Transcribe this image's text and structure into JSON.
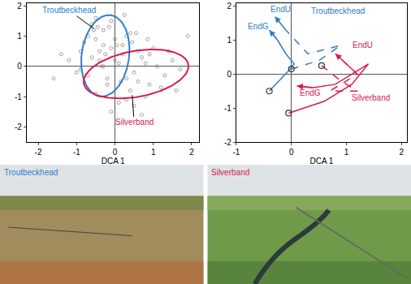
{
  "chart_data": [
    {
      "type": "scatter",
      "xlabel": "DCA 1",
      "xlim": [
        -2.3,
        2.2
      ],
      "xticks": [
        -2,
        -1,
        0,
        1,
        2
      ],
      "ylim": [
        -2.5,
        2.1
      ],
      "yticks": [
        -2,
        -1,
        0,
        1,
        2
      ],
      "grid": false,
      "series": [
        {
          "type": "scatter",
          "color": "#8a8a8a",
          "marker": "open circle",
          "x": [
            -1.2,
            -0.9,
            -0.7,
            -0.5,
            -0.3,
            -0.1,
            0.1,
            0.3,
            0.5,
            0.7,
            0.9,
            1.1,
            1.3,
            1.5,
            1.7,
            -0.8,
            -0.6,
            -0.4,
            -0.2,
            0,
            0.2,
            0.4,
            0.6,
            0.8,
            1.0,
            -1.0,
            -0.5,
            -0.3,
            0.1,
            0.3,
            0.6,
            0.9,
            1.2,
            -0.7,
            -0.4,
            -0.1,
            0.2,
            0.5,
            0.8,
            -0.6,
            -0.2,
            0.0,
            0.4,
            -0.5,
            -0.3,
            -0.1,
            0.3,
            0.7,
            1.4,
            -1.4,
            -0.9,
            0.05,
            -0.15,
            0.25,
            -0.35,
            0.55,
            -0.45,
            1.6,
            1.9,
            -1.6,
            -0.25,
            0.15,
            0.45,
            -0.55,
            0.85
          ],
          "y": [
            0.2,
            0.5,
            -0.3,
            0.9,
            1.2,
            0.6,
            0.1,
            -0.4,
            -0.2,
            0.3,
            -0.6,
            0.0,
            -0.3,
            0.2,
            -0.1,
            0.8,
            1.4,
            0.2,
            -0.6,
            0.9,
            0.4,
            -0.8,
            0.5,
            -1.0,
            0.6,
            -0.2,
            1.6,
            0.0,
            -1.2,
            1.0,
            -0.5,
            0.4,
            -0.7,
            1.0,
            0.5,
            1.5,
            0.7,
            -1.3,
            0.1,
            0.3,
            -0.4,
            0.2,
            1.1,
            -0.9,
            0.7,
            -1.5,
            -1.1,
            -1.6,
            0.5,
            0.4,
            -0.1,
            0.7,
            1.3,
            1.7,
            0.0,
            1.1,
            1.3,
            -0.8,
            1.0,
            -0.4,
            0.4,
            -0.5,
            0.8,
            1.2,
            0.9
          ]
        },
        {
          "type": "ellipse",
          "name": "Troutbeckhead",
          "color": "#2f7ec8",
          "center": [
            -0.25,
            0.35
          ],
          "semi_axes": [
            0.62,
            1.35
          ],
          "angle": -5
        },
        {
          "type": "ellipse",
          "name": "Silverband",
          "color": "#d61b4f",
          "center": [
            0.55,
            -0.25
          ],
          "semi_axes": [
            1.4,
            0.75
          ],
          "angle": 15
        }
      ],
      "annotations": [
        {
          "text": "Troutbeckhead",
          "color": "#2f7ec8",
          "x": -0.55,
          "y": 1.25,
          "text_x": -1.2,
          "text_y": 1.85
        },
        {
          "text": "Silverband",
          "color": "#d61b4f",
          "x": 0.45,
          "y": -0.95,
          "text_x": 0.5,
          "text_y": -1.85
        }
      ]
    },
    {
      "type": "line",
      "xlabel": "DCA 1",
      "xlim": [
        -1.0,
        2.1
      ],
      "xticks": [
        -1,
        0,
        1,
        2
      ],
      "ylim": [
        -2.0,
        2.1
      ],
      "yticks": [
        -2,
        -1,
        0,
        1,
        2
      ],
      "grid": false,
      "series": [
        {
          "type": "line",
          "color": "#2f7ec8",
          "line_style": "solid",
          "marker": "open circle",
          "x": [
            -0.4,
            -0.05,
            0.05,
            -0.1,
            -0.25,
            -0.4
          ],
          "y": [
            -0.5,
            0.1,
            0.3,
            0.6,
            1.0,
            1.3
          ]
        },
        {
          "type": "line",
          "color": "#2f7ec8",
          "line_style": "dashed",
          "marker": "open circle",
          "x": [
            0.0,
            0.5,
            0.9,
            0.3,
            -0.1,
            -0.3
          ],
          "y": [
            0.15,
            0.4,
            0.85,
            0.6,
            1.3,
            1.7
          ]
        },
        {
          "type": "line",
          "color": "#d61b4f",
          "line_style": "solid",
          "marker": "open circle",
          "x": [
            -0.05,
            0.6,
            1.1,
            1.4,
            0.8,
            0.4,
            0.1
          ],
          "y": [
            -1.15,
            -0.8,
            -0.3,
            0.3,
            -0.3,
            -0.4,
            -0.35
          ]
        },
        {
          "type": "line",
          "color": "#d61b4f",
          "line_style": "dashed",
          "marker": "open circle",
          "x": [
            0.55,
            0.9,
            1.2,
            0.7,
            1.2,
            0.8
          ],
          "y": [
            0.25,
            -0.2,
            -0.5,
            -0.5,
            0.0,
            0.6
          ]
        }
      ],
      "annotations": [
        {
          "text": "EndU",
          "color": "#2f7ec8",
          "x": -0.2,
          "y": 1.92
        },
        {
          "text": "EndG",
          "color": "#2f7ec8",
          "x": -0.6,
          "y": 1.4
        },
        {
          "text": "Troutbeckhead",
          "color": "#2f7ec8",
          "x": 0.85,
          "y": 1.85
        },
        {
          "text": "EndU",
          "color": "#d61b4f",
          "x": 1.3,
          "y": 0.85
        },
        {
          "text": "EndG",
          "color": "#d61b4f",
          "x": 0.35,
          "y": -0.55
        },
        {
          "text": "Silverband",
          "color": "#d61b4f",
          "x": 1.45,
          "y": -0.7
        }
      ]
    }
  ],
  "photos": [
    {
      "label": "Troutbeckhead",
      "color": "#2f7ec8"
    },
    {
      "label": "Silverband",
      "color": "#d61b4f"
    }
  ]
}
